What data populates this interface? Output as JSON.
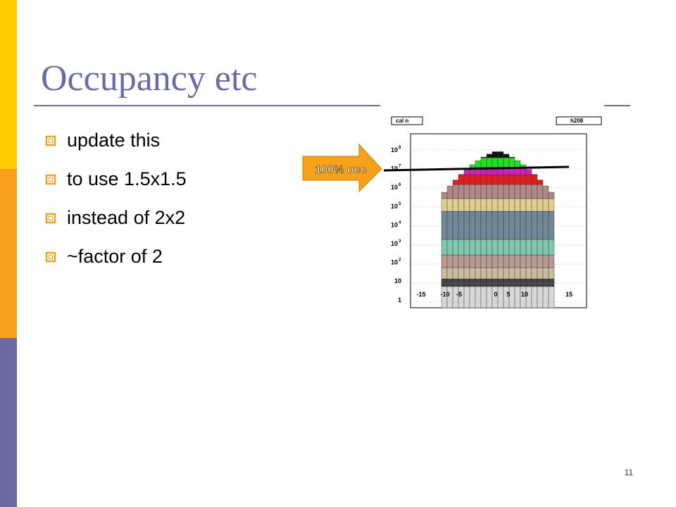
{
  "title": "Occupancy etc",
  "bullets": [
    "update this",
    "to use 1.5x1.5",
    "instead of 2x2",
    "~factor of 2"
  ],
  "figure": {
    "stats_label": "cal n",
    "histogram_name": "h208",
    "y_labels": [
      {
        "base": "10",
        "exp": "8"
      },
      {
        "base": "10",
        "exp": "7"
      },
      {
        "base": "10",
        "exp": "6"
      },
      {
        "base": "10",
        "exp": "5"
      },
      {
        "base": "10",
        "exp": "4"
      },
      {
        "base": "10",
        "exp": "3"
      },
      {
        "base": "10",
        "exp": "2"
      },
      {
        "base": "10"
      },
      {
        "base": "1"
      }
    ],
    "x_labels": [
      "-15",
      "-10",
      "-5",
      "0",
      "5",
      "10",
      "15"
    ],
    "arrow_label": "100% occ"
  },
  "page_number": "11"
}
